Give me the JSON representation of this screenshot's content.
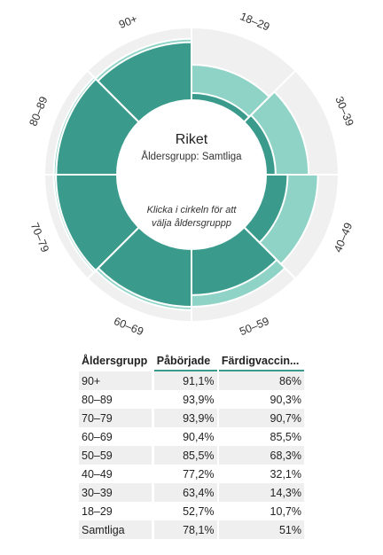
{
  "chart_data": {
    "type": "pie",
    "subtype": "sunburst-rose",
    "center": {
      "title": "Riket",
      "subtitle": "Åldersgrupp: Samtliga",
      "hint_line1": "Klicka i cirkeln för att",
      "hint_line2": "välja åldersgruppp"
    },
    "categories": [
      "18–29",
      "30–39",
      "40–49",
      "50–59",
      "60–69",
      "70–79",
      "80–89",
      "90+"
    ],
    "series": [
      {
        "name": "Påbörjade",
        "values": [
          52.7,
          63.4,
          77.2,
          85.5,
          90.4,
          93.9,
          93.9,
          91.1
        ]
      },
      {
        "name": "Färdigvaccinerade",
        "values": [
          10.7,
          14.3,
          32.1,
          68.3,
          85.5,
          90.7,
          90.3,
          86
        ]
      }
    ],
    "colors": {
      "started": "#8fd3c7",
      "completed": "#3a9b8d",
      "background": "#f0f0f0"
    }
  },
  "table": {
    "headers": [
      "Åldersgrupp",
      "Påbörjade",
      "Färdigvaccin..."
    ],
    "rows": [
      [
        "90+",
        "91,1%",
        "86%"
      ],
      [
        "80–89",
        "93,9%",
        "90,3%"
      ],
      [
        "70–79",
        "93,9%",
        "90,7%"
      ],
      [
        "60–69",
        "90,4%",
        "85,5%"
      ],
      [
        "50–59",
        "85,5%",
        "68,3%"
      ],
      [
        "40–49",
        "77,2%",
        "32,1%"
      ],
      [
        "30–39",
        "63,4%",
        "14,3%"
      ],
      [
        "18–29",
        "52,7%",
        "10,7%"
      ],
      [
        "Samtliga",
        "78,1%",
        "51%"
      ]
    ]
  }
}
